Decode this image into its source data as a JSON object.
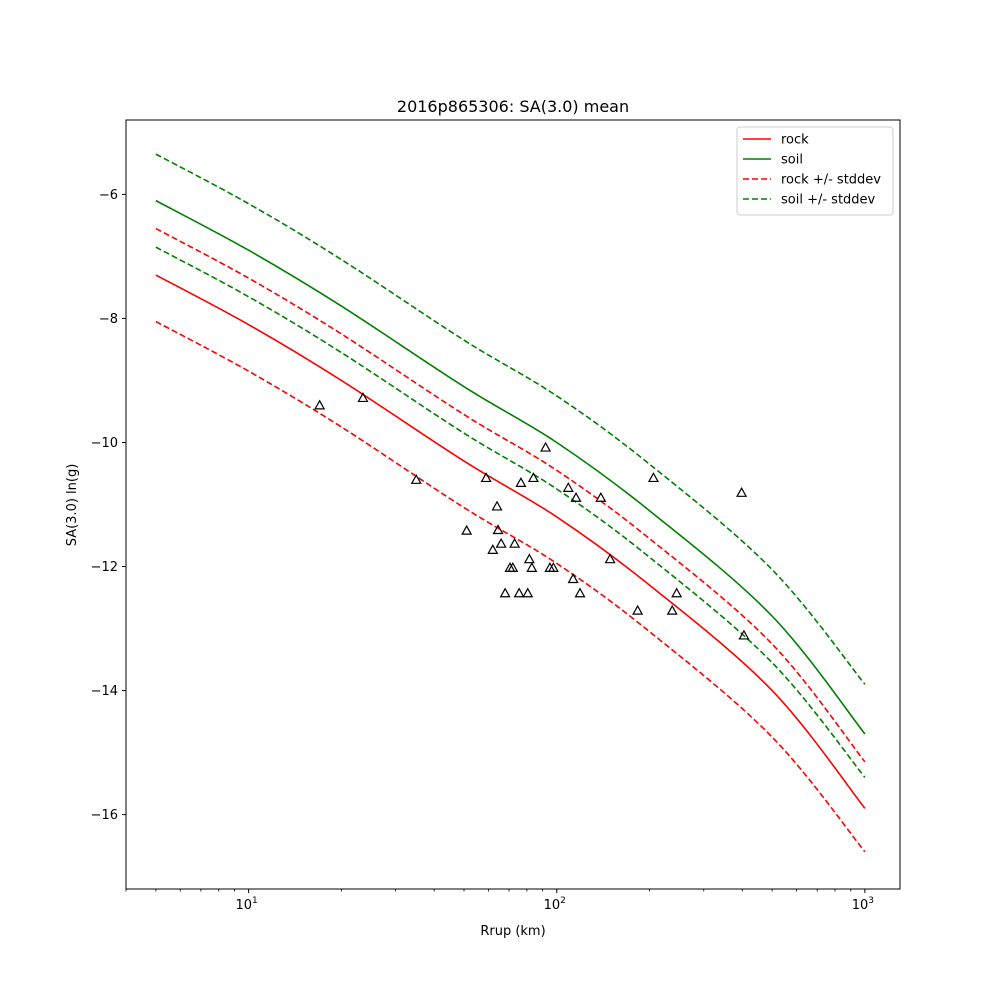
{
  "chart_data": {
    "type": "line",
    "title": "2016p865306: SA(3.0) mean",
    "xlabel": "Rrup (km)",
    "ylabel": "SA(3.0) ln(g)",
    "xscale": "log",
    "xlim": [
      4.0,
      1300
    ],
    "ylim": [
      -17.2,
      -4.8
    ],
    "x_ticks": [
      {
        "value": 10,
        "base": "10",
        "exp": "1"
      },
      {
        "value": 100,
        "base": "10",
        "exp": "2"
      },
      {
        "value": 1000,
        "base": "10",
        "exp": "3"
      }
    ],
    "y_ticks": [
      {
        "value": -6,
        "label": "−6"
      },
      {
        "value": -8,
        "label": "−8"
      },
      {
        "value": -10,
        "label": "−10"
      },
      {
        "value": -12,
        "label": "−12"
      },
      {
        "value": -14,
        "label": "−14"
      },
      {
        "value": -16,
        "label": "−16"
      }
    ],
    "grid": false,
    "legend_position": "top-right",
    "series": [
      {
        "name": "rock",
        "color": "#ff0000",
        "style": "solid",
        "x": [
          5,
          10,
          20,
          50,
          100,
          200,
          500,
          1000
        ],
        "y": [
          -7.3,
          -8.1,
          -9.0,
          -10.3,
          -11.2,
          -12.3,
          -14.0,
          -15.9
        ]
      },
      {
        "name": "soil",
        "color": "#008000",
        "style": "solid",
        "x": [
          5,
          10,
          20,
          50,
          100,
          200,
          500,
          1000
        ],
        "y": [
          -6.1,
          -6.9,
          -7.8,
          -9.1,
          -10.0,
          -11.1,
          -12.8,
          -14.7
        ]
      },
      {
        "name": "rock +/- stddev",
        "color": "#ff0000",
        "style": "dashed",
        "bands": [
          {
            "x": [
              5,
              10,
              20,
              50,
              100,
              200,
              500,
              1000
            ],
            "y": [
              -6.55,
              -7.35,
              -8.25,
              -9.55,
              -10.45,
              -11.55,
              -13.25,
              -15.15
            ]
          },
          {
            "x": [
              5,
              10,
              20,
              50,
              100,
              200,
              500,
              1000
            ],
            "y": [
              -8.05,
              -8.85,
              -9.75,
              -11.05,
              -11.95,
              -13.05,
              -14.75,
              -16.6
            ]
          }
        ]
      },
      {
        "name": "soil +/- stddev",
        "color": "#008000",
        "style": "dashed",
        "bands": [
          {
            "x": [
              5,
              10,
              20,
              50,
              100,
              200,
              500,
              1000
            ],
            "y": [
              -5.35,
              -6.15,
              -7.05,
              -8.35,
              -9.25,
              -10.35,
              -12.05,
              -13.9
            ]
          },
          {
            "x": [
              5,
              10,
              20,
              50,
              100,
              200,
              500,
              1000
            ],
            "y": [
              -6.85,
              -7.65,
              -8.55,
              -9.85,
              -10.75,
              -11.85,
              -13.55,
              -15.4
            ]
          }
        ]
      }
    ],
    "observations": {
      "marker": "triangle",
      "color": "#000000",
      "points": [
        [
          17,
          -9.4
        ],
        [
          23.5,
          -9.28
        ],
        [
          35,
          -10.6
        ],
        [
          51,
          -11.42
        ],
        [
          59,
          -10.57
        ],
        [
          62,
          -11.73
        ],
        [
          64,
          -11.03
        ],
        [
          64.5,
          -11.41
        ],
        [
          66,
          -11.63
        ],
        [
          68,
          -12.43
        ],
        [
          70.5,
          -12.02
        ],
        [
          72,
          -12.02
        ],
        [
          73,
          -11.63
        ],
        [
          75.5,
          -12.43
        ],
        [
          76.5,
          -10.65
        ],
        [
          80.5,
          -12.43
        ],
        [
          81.5,
          -11.88
        ],
        [
          83,
          -12.02
        ],
        [
          84,
          -10.57
        ],
        [
          92,
          -10.08
        ],
        [
          95,
          -12.02
        ],
        [
          97.5,
          -12.02
        ],
        [
          109,
          -10.73
        ],
        [
          113,
          -12.2
        ],
        [
          115.5,
          -10.89
        ],
        [
          119,
          -12.43
        ],
        [
          139,
          -10.89
        ],
        [
          149,
          -11.88
        ],
        [
          183,
          -12.71
        ],
        [
          206,
          -10.57
        ],
        [
          237,
          -12.71
        ],
        [
          245,
          -12.43
        ],
        [
          398,
          -10.81
        ],
        [
          405,
          -13.11
        ]
      ]
    }
  }
}
